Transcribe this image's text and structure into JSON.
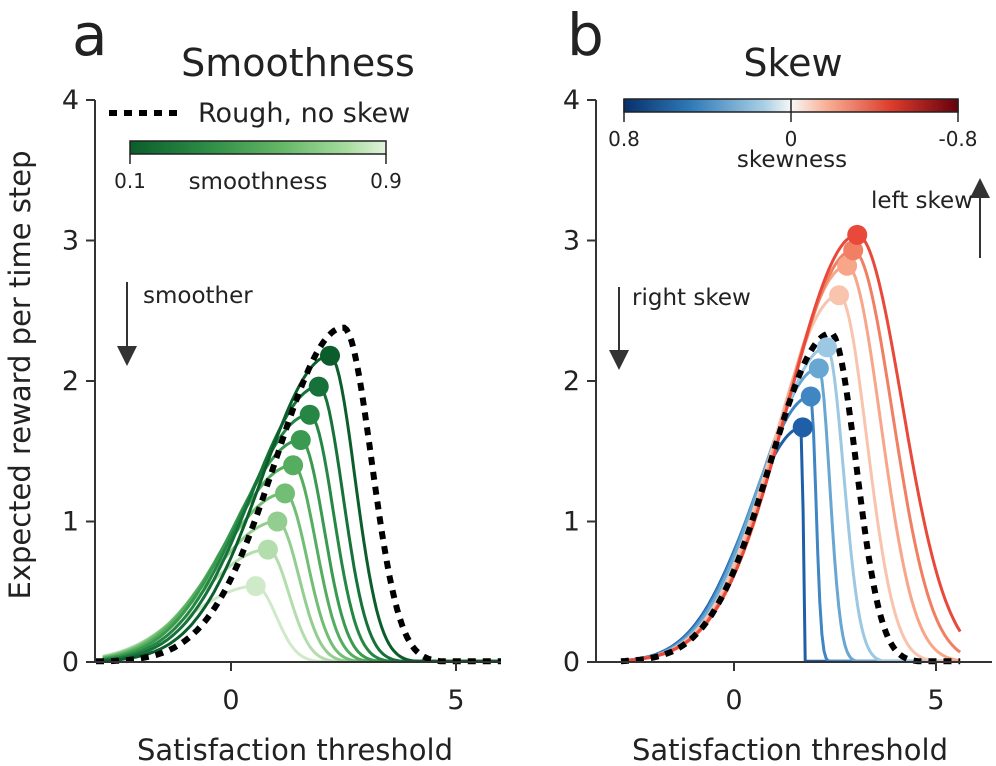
{
  "figure": {
    "ylabel": "Expected reward per time step"
  },
  "chart_data": [
    {
      "panel": "a",
      "type": "line",
      "title": "Smoothness",
      "xlabel": "Satisfaction threshold",
      "ylabel": "Expected reward per time step",
      "xlim": [
        -3,
        6
      ],
      "ylim": [
        0,
        4
      ],
      "xticks": [
        0,
        5
      ],
      "yticks": [
        0,
        1,
        2,
        3,
        4
      ],
      "legend": {
        "label": "Rough, no skew",
        "style": "dotted black",
        "position": "top"
      },
      "colorbar": {
        "title": "smoothness",
        "min_label": "0.1",
        "max_label": "0.9",
        "colors": [
          "#0b5e2c",
          "#2d8c45",
          "#65b868",
          "#a8dca0",
          "#e2f3dc"
        ],
        "position": "top-left"
      },
      "annotation": {
        "text": "smoother",
        "arrow": "down"
      },
      "reference": {
        "name": "Rough, no skew",
        "color": "#000000",
        "peak_x": 2.5,
        "peak_y": 2.38
      },
      "series": [
        {
          "name": "smoothness 0.1",
          "color": "#0b5e2c",
          "peak_x": 2.2,
          "peak_y": 2.18
        },
        {
          "name": "smoothness 0.2",
          "color": "#17723a",
          "peak_x": 1.95,
          "peak_y": 1.96
        },
        {
          "name": "smoothness 0.3",
          "color": "#268644",
          "peak_x": 1.75,
          "peak_y": 1.76
        },
        {
          "name": "smoothness 0.4",
          "color": "#3a9a50",
          "peak_x": 1.55,
          "peak_y": 1.58
        },
        {
          "name": "smoothness 0.5",
          "color": "#55ad60",
          "peak_x": 1.38,
          "peak_y": 1.4
        },
        {
          "name": "smoothness 0.6",
          "color": "#72be75",
          "peak_x": 1.2,
          "peak_y": 1.2
        },
        {
          "name": "smoothness 0.7",
          "color": "#93ce90",
          "peak_x": 1.03,
          "peak_y": 1.0
        },
        {
          "name": "smoothness 0.8",
          "color": "#b4ddae",
          "peak_x": 0.82,
          "peak_y": 0.8
        },
        {
          "name": "smoothness 0.9",
          "color": "#cfeac8",
          "peak_x": 0.55,
          "peak_y": 0.54
        }
      ]
    },
    {
      "panel": "b",
      "type": "line",
      "title": "Skew",
      "xlabel": "Satisfaction threshold",
      "ylabel": "",
      "xlim": [
        -3,
        6
      ],
      "ylim": [
        0,
        4
      ],
      "xticks": [
        0,
        5
      ],
      "yticks": [
        0,
        1,
        2,
        3,
        4
      ],
      "colorbar": {
        "title": "skewness",
        "left_label": "0.8",
        "mid_label": "0",
        "right_label": "-0.8",
        "colors": [
          "#08306b",
          "#2f7ab8",
          "#a9cfe5",
          "#f7f7f7",
          "#f8b49a",
          "#dc3c2c",
          "#67000d"
        ],
        "position": "top"
      },
      "annotations": [
        {
          "text": "right skew",
          "arrow": "down"
        },
        {
          "text": "left skew",
          "arrow": "up"
        }
      ],
      "reference": {
        "name": "Rough, no skew",
        "color": "#000000",
        "peak_x": 2.4,
        "peak_y": 2.34
      },
      "series": [
        {
          "name": "skewness 0.8",
          "color": "#1f5fa8",
          "peak_x": 1.7,
          "peak_y": 1.67
        },
        {
          "name": "skewness 0.6",
          "color": "#3f86c2",
          "peak_x": 1.9,
          "peak_y": 1.89
        },
        {
          "name": "skewness 0.4",
          "color": "#69a7d3",
          "peak_x": 2.1,
          "peak_y": 2.09
        },
        {
          "name": "skewness 0.2",
          "color": "#9cc8e3",
          "peak_x": 2.3,
          "peak_y": 2.24
        },
        {
          "name": "skewness -0.2",
          "color": "#f9c4ae",
          "peak_x": 2.6,
          "peak_y": 2.61
        },
        {
          "name": "skewness -0.4",
          "color": "#f7a68a",
          "peak_x": 2.8,
          "peak_y": 2.82
        },
        {
          "name": "skewness -0.6",
          "color": "#f07f63",
          "peak_x": 2.95,
          "peak_y": 2.93
        },
        {
          "name": "skewness -0.8",
          "color": "#e8493a",
          "peak_x": 3.05,
          "peak_y": 3.04
        }
      ]
    }
  ]
}
